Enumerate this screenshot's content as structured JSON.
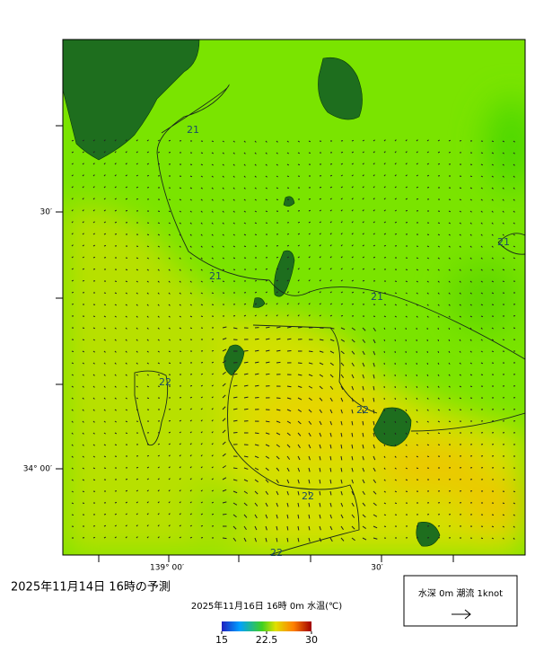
{
  "map": {
    "lat_labels": [
      "30′",
      "34° 00′"
    ],
    "lon_labels": [
      "139° 00′",
      "30′"
    ],
    "contour_labels": [
      "21",
      "21",
      "21",
      "21",
      "22",
      "22",
      "22",
      "22"
    ]
  },
  "footer": {
    "forecast_time": "2025年11月14日 16時の予測",
    "product": "2025年11月16日 16時 0m 水温(℃)",
    "colorbar_ticks": [
      15,
      22.5,
      30
    ],
    "legend": "水深 0m 潮流 1knot"
  }
}
